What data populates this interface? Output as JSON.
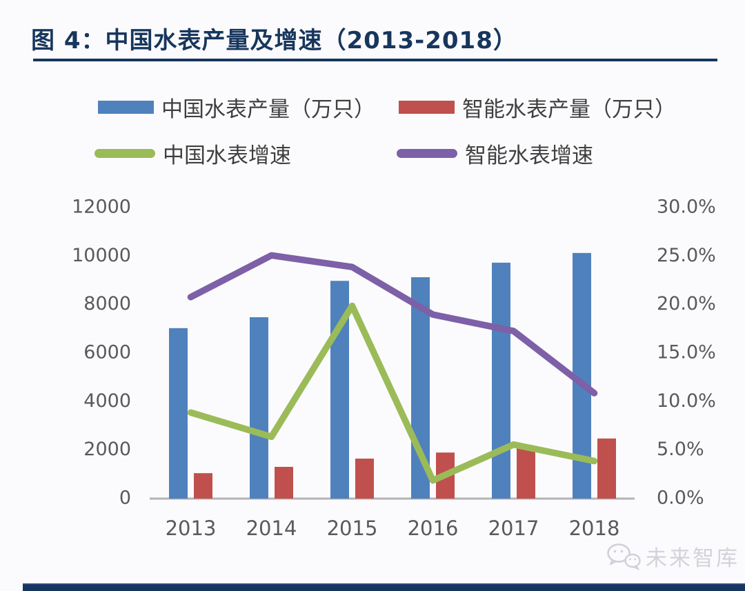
{
  "page": {
    "background": "#fbfbfd",
    "accent_navy": "#17365d",
    "tick_text_color": "#595959",
    "axis_line_color": "#b3b3b3"
  },
  "header": {
    "title": "图 4：中国水表产量及增速（2013-2018）"
  },
  "legend": {
    "items": [
      {
        "label": "中国水表产量（万只）",
        "color": "#4f81bd",
        "type": "bar"
      },
      {
        "label": "智能水表产量（万只）",
        "color": "#c0504d",
        "type": "bar"
      },
      {
        "label": "中国水表增速",
        "color": "#9bbb59",
        "type": "line"
      },
      {
        "label": "智能水表增速",
        "color": "#7d60a7",
        "type": "line"
      }
    ]
  },
  "watermark": {
    "icon": "wechat-icon",
    "text": "未来智库",
    "color": "#d2d3db"
  },
  "chart_data": {
    "type": "combo bar + line",
    "title": "中国水表产量及增速（2013-2018）",
    "categories": [
      "2013",
      "2014",
      "2015",
      "2016",
      "2017",
      "2018"
    ],
    "bar_series": [
      {
        "name": "中国水表产量（万只）",
        "axis": "left",
        "color": "#4f81bd",
        "values": [
          7000,
          7450,
          8950,
          9100,
          9700,
          10100
        ]
      },
      {
        "name": "智能水表产量（万只）",
        "axis": "left",
        "color": "#c0504d",
        "values": [
          1020,
          1280,
          1620,
          1870,
          2130,
          2450
        ]
      }
    ],
    "line_series": [
      {
        "name": "中国水表增速",
        "axis": "right",
        "color": "#9bbb59",
        "values_pct": [
          8.8,
          6.3,
          19.8,
          1.8,
          5.5,
          3.8
        ]
      },
      {
        "name": "智能水表增速",
        "axis": "right",
        "color": "#7d60a7",
        "values_pct": [
          20.7,
          25.0,
          23.8,
          18.9,
          17.2,
          10.8
        ]
      }
    ],
    "left_axis": {
      "min": 0,
      "max": 12000,
      "step": 2000,
      "ticks": [
        "0",
        "2000",
        "4000",
        "6000",
        "8000",
        "10000",
        "12000"
      ]
    },
    "right_axis": {
      "min": 0,
      "max": 30,
      "step": 5,
      "ticks": [
        "0.0%",
        "5.0%",
        "10.0%",
        "15.0%",
        "20.0%",
        "25.0%",
        "30.0%"
      ]
    },
    "grid": false,
    "legend_position": "top"
  }
}
